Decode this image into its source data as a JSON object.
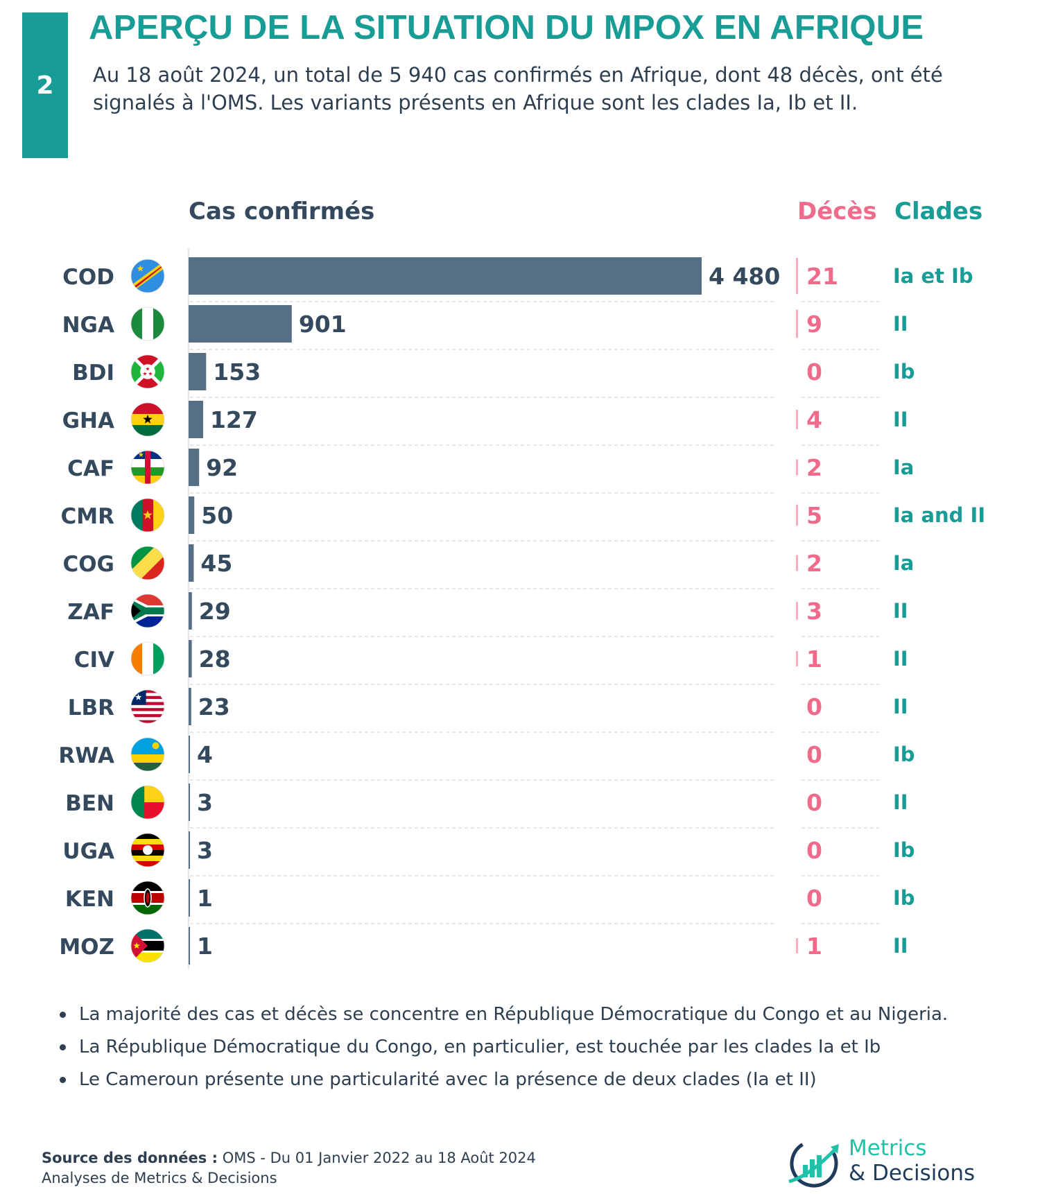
{
  "header": {
    "number": "2",
    "title": "APERÇU DE LA SITUATION DU MPOX EN AFRIQUE",
    "subtitle": "Au 18 août 2024, un total de 5 940 cas confirmés en Afrique, dont 48 décès, ont été signalés à l'OMS. Les variants présents en Afrique sont les clades Ia, Ib et II."
  },
  "columns": {
    "cases": "Cas confirmés",
    "deaths": "Décès",
    "clades": "Clades"
  },
  "colors": {
    "accent": "#179c96",
    "bar": "#566f84",
    "deaths": "#f06b8b",
    "text": "#34495e"
  },
  "chart_data": {
    "type": "bar",
    "orientation": "horizontal",
    "categories": [
      "COD",
      "NGA",
      "BDI",
      "GHA",
      "CAF",
      "CMR",
      "COG",
      "ZAF",
      "CIV",
      "LBR",
      "RWA",
      "BEN",
      "UGA",
      "KEN",
      "MOZ"
    ],
    "values": [
      4480,
      901,
      153,
      127,
      92,
      50,
      45,
      29,
      28,
      23,
      4,
      3,
      3,
      1,
      1
    ],
    "value_labels": [
      "4 480",
      "901",
      "153",
      "127",
      "92",
      "50",
      "45",
      "29",
      "28",
      "23",
      "4",
      "3",
      "3",
      "1",
      "1"
    ],
    "deaths": [
      21,
      9,
      0,
      4,
      2,
      5,
      2,
      3,
      1,
      0,
      0,
      0,
      0,
      0,
      1
    ],
    "clades": [
      "Ia et Ib",
      "II",
      "Ib",
      "II",
      "Ia",
      "Ia and II",
      "Ia",
      "II",
      "II",
      "II",
      "Ib",
      "II",
      "Ib",
      "Ib",
      "II"
    ],
    "flags": [
      "flag-cod",
      "flag-nga",
      "flag-bdi",
      "flag-gha",
      "flag-caf",
      "flag-cmr",
      "flag-cog",
      "flag-zaf",
      "flag-civ",
      "flag-lbr",
      "flag-rwa",
      "flag-ben",
      "flag-uga",
      "flag-ken",
      "flag-moz"
    ],
    "xlim": [
      0,
      4480
    ],
    "grid": false
  },
  "bullets": [
    "La majorité des cas et décès se concentre en République Démocratique du Congo et au Nigeria.",
    "La République Démocratique du Congo, en particulier, est touchée par les clades Ia et Ib",
    "Le Cameroun présente une particularité avec la présence de deux clades (Ia et II)"
  ],
  "footer": {
    "source_label": "Source des données :",
    "source_text": "OMS - Du 01 Janvier 2022 au 18 Août 2024",
    "analysis": "Analyses de Metrics & Decisions",
    "logo_line1": "Metrics",
    "logo_line2": "& Decisions"
  }
}
